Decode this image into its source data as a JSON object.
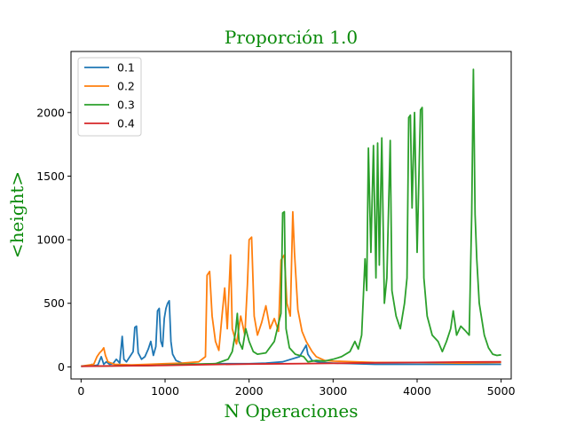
{
  "chart_data": {
    "type": "line",
    "title": "Proporción 1.0",
    "xlabel": "N Operaciones",
    "ylabel": "<height>",
    "xlim": [
      -120,
      5120
    ],
    "ylim": [
      -95,
      2480
    ],
    "xticks": [
      0,
      1000,
      2000,
      3000,
      4000,
      5000
    ],
    "yticks": [
      0,
      500,
      1000,
      1500,
      2000
    ],
    "grid": false,
    "legend_position": "top-left",
    "series": [
      {
        "name": "0.1",
        "color": "#1f77b4",
        "points": [
          [
            0,
            5
          ],
          [
            60,
            6
          ],
          [
            100,
            8
          ],
          [
            130,
            20
          ],
          [
            160,
            10
          ],
          [
            200,
            15
          ],
          [
            240,
            80
          ],
          [
            270,
            20
          ],
          [
            300,
            40
          ],
          [
            340,
            20
          ],
          [
            380,
            25
          ],
          [
            420,
            60
          ],
          [
            460,
            30
          ],
          [
            490,
            240
          ],
          [
            510,
            60
          ],
          [
            540,
            40
          ],
          [
            580,
            80
          ],
          [
            620,
            120
          ],
          [
            640,
            310
          ],
          [
            660,
            320
          ],
          [
            680,
            110
          ],
          [
            720,
            60
          ],
          [
            760,
            80
          ],
          [
            800,
            140
          ],
          [
            830,
            200
          ],
          [
            860,
            90
          ],
          [
            890,
            160
          ],
          [
            910,
            440
          ],
          [
            930,
            460
          ],
          [
            950,
            200
          ],
          [
            970,
            160
          ],
          [
            990,
            380
          ],
          [
            1010,
            460
          ],
          [
            1030,
            500
          ],
          [
            1050,
            520
          ],
          [
            1070,
            200
          ],
          [
            1090,
            100
          ],
          [
            1130,
            50
          ],
          [
            1200,
            30
          ],
          [
            1400,
            20
          ],
          [
            1600,
            25
          ],
          [
            1800,
            25
          ],
          [
            2000,
            25
          ],
          [
            2200,
            30
          ],
          [
            2400,
            40
          ],
          [
            2600,
            80
          ],
          [
            2680,
            170
          ],
          [
            2700,
            100
          ],
          [
            2750,
            50
          ],
          [
            2850,
            35
          ],
          [
            3000,
            30
          ],
          [
            3500,
            20
          ],
          [
            4000,
            20
          ],
          [
            4500,
            20
          ],
          [
            5000,
            20
          ]
        ]
      },
      {
        "name": "0.2",
        "color": "#ff7f0e",
        "points": [
          [
            0,
            5
          ],
          [
            150,
            20
          ],
          [
            190,
            80
          ],
          [
            220,
            110
          ],
          [
            250,
            130
          ],
          [
            270,
            150
          ],
          [
            290,
            90
          ],
          [
            320,
            40
          ],
          [
            400,
            20
          ],
          [
            600,
            15
          ],
          [
            800,
            20
          ],
          [
            1000,
            25
          ],
          [
            1200,
            30
          ],
          [
            1400,
            40
          ],
          [
            1480,
            80
          ],
          [
            1500,
            720
          ],
          [
            1530,
            750
          ],
          [
            1560,
            400
          ],
          [
            1600,
            200
          ],
          [
            1640,
            130
          ],
          [
            1680,
            420
          ],
          [
            1710,
            620
          ],
          [
            1740,
            300
          ],
          [
            1760,
            600
          ],
          [
            1780,
            880
          ],
          [
            1800,
            300
          ],
          [
            1850,
            180
          ],
          [
            1900,
            400
          ],
          [
            1950,
            250
          ],
          [
            1980,
            650
          ],
          [
            2000,
            1000
          ],
          [
            2030,
            1020
          ],
          [
            2060,
            400
          ],
          [
            2100,
            250
          ],
          [
            2150,
            350
          ],
          [
            2200,
            480
          ],
          [
            2250,
            300
          ],
          [
            2300,
            380
          ],
          [
            2350,
            280
          ],
          [
            2380,
            840
          ],
          [
            2420,
            880
          ],
          [
            2450,
            500
          ],
          [
            2490,
            400
          ],
          [
            2520,
            1220
          ],
          [
            2540,
            900
          ],
          [
            2580,
            450
          ],
          [
            2630,
            280
          ],
          [
            2680,
            200
          ],
          [
            2750,
            120
          ],
          [
            2800,
            80
          ],
          [
            2900,
            50
          ],
          [
            3000,
            45
          ],
          [
            3500,
            35
          ],
          [
            4000,
            35
          ],
          [
            4500,
            30
          ],
          [
            5000,
            35
          ]
        ]
      },
      {
        "name": "0.3",
        "color": "#2ca02c",
        "points": [
          [
            0,
            5
          ],
          [
            400,
            8
          ],
          [
            800,
            10
          ],
          [
            1200,
            20
          ],
          [
            1600,
            25
          ],
          [
            1750,
            60
          ],
          [
            1800,
            120
          ],
          [
            1840,
            280
          ],
          [
            1860,
            420
          ],
          [
            1880,
            200
          ],
          [
            1920,
            140
          ],
          [
            1960,
            300
          ],
          [
            2000,
            200
          ],
          [
            2050,
            120
          ],
          [
            2100,
            100
          ],
          [
            2200,
            110
          ],
          [
            2300,
            200
          ],
          [
            2350,
            340
          ],
          [
            2380,
            420
          ],
          [
            2400,
            1210
          ],
          [
            2420,
            1220
          ],
          [
            2440,
            300
          ],
          [
            2480,
            150
          ],
          [
            2550,
            100
          ],
          [
            2650,
            80
          ],
          [
            2700,
            40
          ],
          [
            2800,
            50
          ],
          [
            2900,
            45
          ],
          [
            3000,
            60
          ],
          [
            3100,
            80
          ],
          [
            3200,
            120
          ],
          [
            3260,
            200
          ],
          [
            3300,
            140
          ],
          [
            3340,
            250
          ],
          [
            3380,
            850
          ],
          [
            3400,
            600
          ],
          [
            3420,
            1720
          ],
          [
            3450,
            900
          ],
          [
            3480,
            1740
          ],
          [
            3510,
            700
          ],
          [
            3530,
            1760
          ],
          [
            3550,
            800
          ],
          [
            3580,
            1800
          ],
          [
            3610,
            500
          ],
          [
            3640,
            700
          ],
          [
            3680,
            1780
          ],
          [
            3700,
            600
          ],
          [
            3750,
            400
          ],
          [
            3800,
            300
          ],
          [
            3850,
            500
          ],
          [
            3880,
            700
          ],
          [
            3900,
            1960
          ],
          [
            3920,
            1980
          ],
          [
            3940,
            1250
          ],
          [
            3970,
            2000
          ],
          [
            4000,
            900
          ],
          [
            4040,
            2020
          ],
          [
            4060,
            2040
          ],
          [
            4080,
            700
          ],
          [
            4120,
            400
          ],
          [
            4180,
            250
          ],
          [
            4250,
            200
          ],
          [
            4300,
            120
          ],
          [
            4350,
            200
          ],
          [
            4400,
            300
          ],
          [
            4430,
            440
          ],
          [
            4470,
            250
          ],
          [
            4520,
            320
          ],
          [
            4580,
            280
          ],
          [
            4620,
            250
          ],
          [
            4650,
            1200
          ],
          [
            4670,
            2340
          ],
          [
            4690,
            1200
          ],
          [
            4710,
            850
          ],
          [
            4740,
            500
          ],
          [
            4800,
            250
          ],
          [
            4850,
            150
          ],
          [
            4900,
            100
          ],
          [
            4950,
            90
          ],
          [
            5000,
            95
          ]
        ]
      },
      {
        "name": "0.4",
        "color": "#d62728",
        "points": [
          [
            0,
            5
          ],
          [
            500,
            8
          ],
          [
            1000,
            12
          ],
          [
            1500,
            18
          ],
          [
            2000,
            22
          ],
          [
            2500,
            25
          ],
          [
            3000,
            28
          ],
          [
            3500,
            32
          ],
          [
            4000,
            35
          ],
          [
            4500,
            38
          ],
          [
            5000,
            40
          ]
        ]
      }
    ]
  }
}
